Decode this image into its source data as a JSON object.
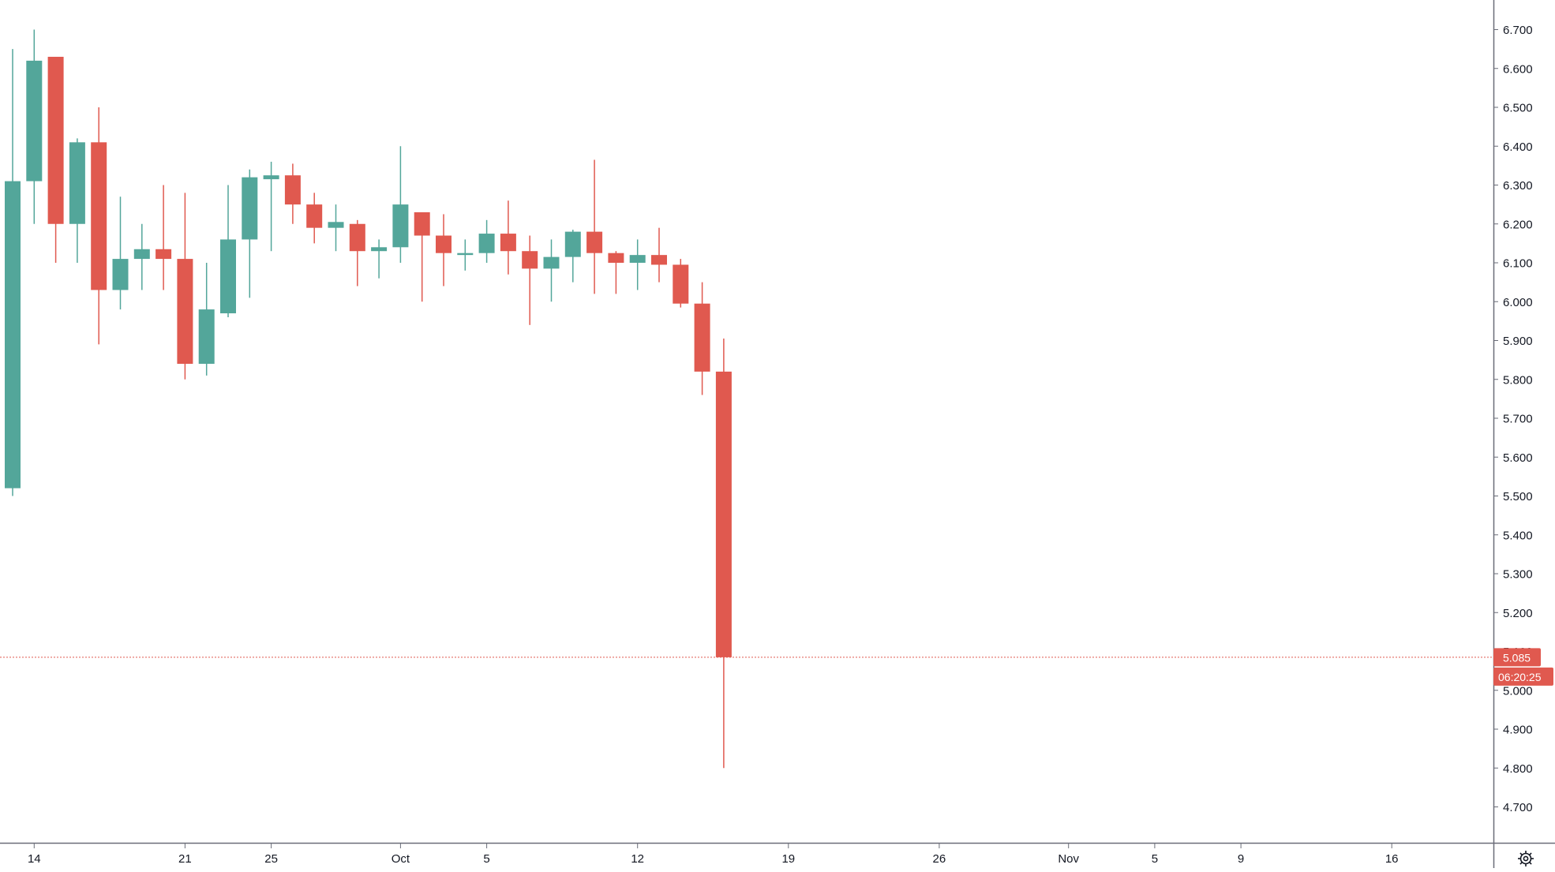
{
  "colors": {
    "up": "#53a69a",
    "down": "#e0594f",
    "axis_line": "#6a6d78",
    "text": "#131722",
    "last_price_line": "#e0594f",
    "background": "#ffffff"
  },
  "settings_icon": "gear-icon",
  "chart_data": {
    "type": "candlestick",
    "title": "",
    "xlabel": "",
    "ylabel": "",
    "ylim": [
      4.645,
      6.775
    ],
    "grid": false,
    "y_ticks": [
      "6.700",
      "6.600",
      "6.500",
      "6.400",
      "6.300",
      "6.200",
      "6.100",
      "6.000",
      "5.900",
      "5.800",
      "5.700",
      "5.600",
      "5.500",
      "5.400",
      "5.300",
      "5.200",
      "5.100",
      "5.000",
      "4.900",
      "4.800",
      "4.700"
    ],
    "x_ticks": [
      {
        "label": "14",
        "day_index": 1
      },
      {
        "label": "21",
        "day_index": 8
      },
      {
        "label": "25",
        "day_index": 12
      },
      {
        "label": "Oct",
        "day_index": 18
      },
      {
        "label": "5",
        "day_index": 22
      },
      {
        "label": "12",
        "day_index": 29
      },
      {
        "label": "19",
        "day_index": 36
      },
      {
        "label": "26",
        "day_index": 43
      },
      {
        "label": "Nov",
        "day_index": 49
      },
      {
        "label": "5",
        "day_index": 53
      },
      {
        "label": "9",
        "day_index": 57
      },
      {
        "label": "16",
        "day_index": 64
      }
    ],
    "candles": [
      {
        "open": 5.52,
        "high": 6.65,
        "low": 5.5,
        "close": 6.31
      },
      {
        "open": 6.31,
        "high": 6.7,
        "low": 6.2,
        "close": 6.62
      },
      {
        "open": 6.63,
        "high": 6.63,
        "low": 6.1,
        "close": 6.2
      },
      {
        "open": 6.2,
        "high": 6.42,
        "low": 6.1,
        "close": 6.41
      },
      {
        "open": 6.41,
        "high": 6.5,
        "low": 5.89,
        "close": 6.03
      },
      {
        "open": 6.03,
        "high": 6.27,
        "low": 5.98,
        "close": 6.11
      },
      {
        "open": 6.11,
        "high": 6.2,
        "low": 6.03,
        "close": 6.135
      },
      {
        "open": 6.135,
        "high": 6.3,
        "low": 6.03,
        "close": 6.11
      },
      {
        "open": 6.11,
        "high": 6.28,
        "low": 5.8,
        "close": 5.84
      },
      {
        "open": 5.84,
        "high": 6.1,
        "low": 5.81,
        "close": 5.98
      },
      {
        "open": 5.97,
        "high": 6.3,
        "low": 5.96,
        "close": 6.16
      },
      {
        "open": 6.16,
        "high": 6.34,
        "low": 6.01,
        "close": 6.32
      },
      {
        "open": 6.315,
        "high": 6.36,
        "low": 6.13,
        "close": 6.325
      },
      {
        "open": 6.325,
        "high": 6.355,
        "low": 6.2,
        "close": 6.25
      },
      {
        "open": 6.25,
        "high": 6.28,
        "low": 6.15,
        "close": 6.19
      },
      {
        "open": 6.19,
        "high": 6.25,
        "low": 6.13,
        "close": 6.205
      },
      {
        "open": 6.2,
        "high": 6.21,
        "low": 6.04,
        "close": 6.13
      },
      {
        "open": 6.13,
        "high": 6.16,
        "low": 6.06,
        "close": 6.14
      },
      {
        "open": 6.14,
        "high": 6.4,
        "low": 6.1,
        "close": 6.25
      },
      {
        "open": 6.23,
        "high": 6.23,
        "low": 6.0,
        "close": 6.17
      },
      {
        "open": 6.17,
        "high": 6.225,
        "low": 6.04,
        "close": 6.125
      },
      {
        "open": 6.12,
        "high": 6.16,
        "low": 6.08,
        "close": 6.125
      },
      {
        "open": 6.125,
        "high": 6.21,
        "low": 6.1,
        "close": 6.175
      },
      {
        "open": 6.175,
        "high": 6.26,
        "low": 6.07,
        "close": 6.13
      },
      {
        "open": 6.13,
        "high": 6.17,
        "low": 5.94,
        "close": 6.085
      },
      {
        "open": 6.085,
        "high": 6.16,
        "low": 6.0,
        "close": 6.115
      },
      {
        "open": 6.115,
        "high": 6.185,
        "low": 6.05,
        "close": 6.18
      },
      {
        "open": 6.18,
        "high": 6.365,
        "low": 6.02,
        "close": 6.125
      },
      {
        "open": 6.125,
        "high": 6.13,
        "low": 6.02,
        "close": 6.1
      },
      {
        "open": 6.1,
        "high": 6.16,
        "low": 6.03,
        "close": 6.12
      },
      {
        "open": 6.12,
        "high": 6.19,
        "low": 6.05,
        "close": 6.095
      },
      {
        "open": 6.095,
        "high": 6.11,
        "low": 5.985,
        "close": 5.995
      },
      {
        "open": 5.995,
        "high": 6.05,
        "low": 5.76,
        "close": 5.82
      },
      {
        "open": 5.82,
        "high": 5.905,
        "low": 4.8,
        "close": 5.085
      }
    ],
    "last_price": {
      "value": 5.085,
      "label": "5.085",
      "countdown": "06:20:25"
    }
  }
}
